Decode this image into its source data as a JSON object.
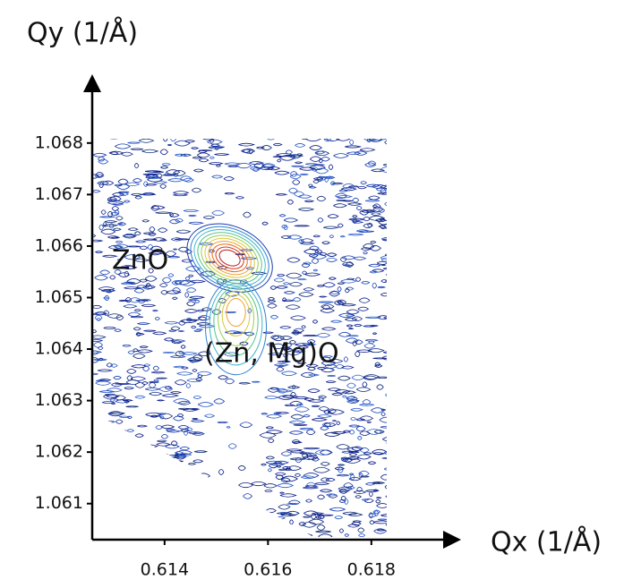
{
  "chart_data": {
    "type": "contour",
    "xlabel": "Qx (1/Å)",
    "ylabel": "Qy (1/Å)",
    "xlim": [
      0.6126,
      0.6197
    ],
    "ylim": [
      1.0603,
      1.0693
    ],
    "xticks": [
      0.614,
      0.616,
      0.618
    ],
    "yticks": [
      1.061,
      1.062,
      1.063,
      1.064,
      1.065,
      1.066,
      1.067,
      1.068
    ],
    "peaks": [
      {
        "label": "ZnO",
        "x": 0.61526,
        "y": 1.06577
      },
      {
        "label": "(Zn, Mg)O",
        "x": 0.61538,
        "y": 1.06477
      }
    ]
  }
}
